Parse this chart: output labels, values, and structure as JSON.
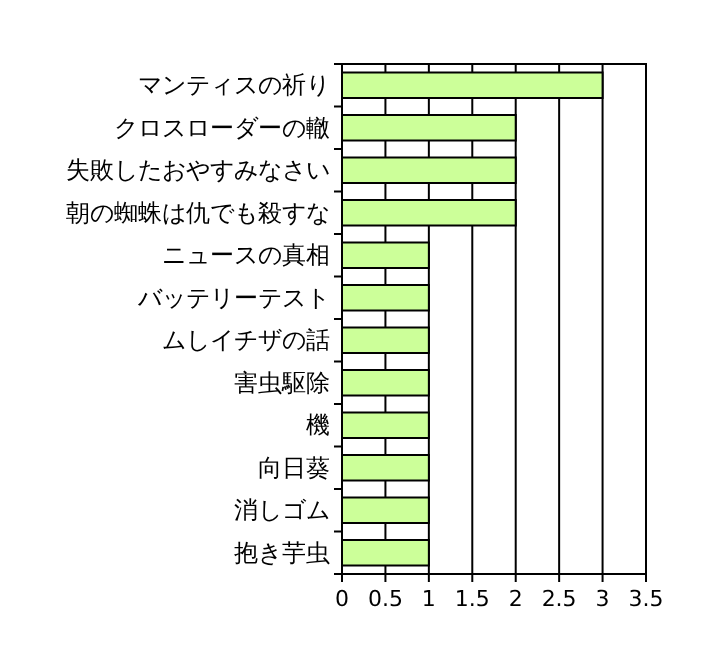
{
  "chart_data": {
    "type": "bar",
    "orientation": "horizontal",
    "categories": [
      "マンティスの祈り",
      "クロスローダーの轍",
      "失敗したおやすみなさい",
      "朝の蜘蛛は仇でも殺すな",
      "ニュースの真相",
      "バッテリーテスト",
      "ムしイチザの話",
      "害虫駆除",
      "機",
      "向日葵",
      "消しゴム",
      "抱き芋虫"
    ],
    "values": [
      3,
      2,
      2,
      2,
      1,
      1,
      1,
      1,
      1,
      1,
      1,
      1
    ],
    "color": "#ccff99",
    "xlim": [
      0,
      3.5
    ],
    "xticks": [
      0,
      0.5,
      1,
      1.5,
      2,
      2.5,
      3,
      3.5
    ],
    "grid": "x"
  }
}
